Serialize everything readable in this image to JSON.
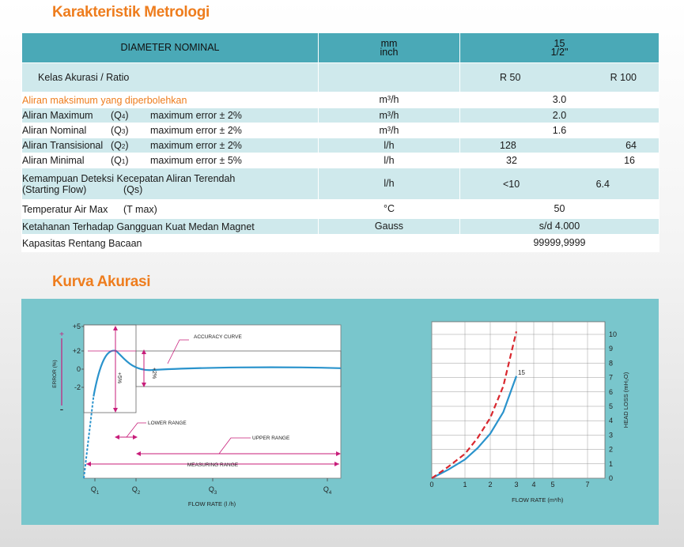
{
  "section1_title": "Karakteristik Metrologi",
  "section2_title": "Kurva Akurasi",
  "table": {
    "header": {
      "label": "DIAMETER NOMINAL",
      "unit_line1": "mm",
      "unit_line2": "inch",
      "value_line1": "15",
      "value_line2": "1/2\""
    },
    "ratio": {
      "label": "Kelas Akurasi / Ratio",
      "r50": "R 50",
      "r100": "R 100"
    },
    "max_flow": {
      "label": "Aliran maksimum yang diperbolehkan",
      "unit": "m³/h",
      "value": "3.0"
    },
    "q4": {
      "label": "Aliran Maximum",
      "symbol": "(Q",
      "sub": "4",
      "close": ")",
      "error": "maximum error ± 2%",
      "unit": "m³/h",
      "value": "2.0"
    },
    "q3": {
      "label": "Aliran Nominal",
      "symbol": "(Q",
      "sub": "3",
      "close": ")",
      "error": "maximum error ± 2%",
      "unit": "m³/h",
      "value": "1.6"
    },
    "q2": {
      "label": "Aliran Transisional",
      "symbol": "(Q",
      "sub": "2",
      "close": ")",
      "error": "maximum error ± 2%",
      "unit": "l/h",
      "v1": "128",
      "v2": "64"
    },
    "q1": {
      "label": "Aliran Minimal",
      "symbol": "(Q",
      "sub": "1",
      "close": ")",
      "error": "maximum error ± 5%",
      "unit": "l/h",
      "v1": "32",
      "v2": "16"
    },
    "qs": {
      "label_line1": "Kemampuan Deteksi Kecepatan Aliran Terendah",
      "label_line2": "(Starting Flow)",
      "symbol": "(Qs)",
      "unit": "l/h",
      "v1": "<10",
      "v2": "6.4"
    },
    "temp": {
      "label": "Temperatur Air Max",
      "symbol": "(T max)",
      "unit": "°C",
      "value": "50"
    },
    "magnet": {
      "label": "Ketahanan Terhadap Gangguan Kuat Medan Magnet",
      "unit": "Gauss",
      "value": "s/d 4.000"
    },
    "range": {
      "label": "Kapasitas Rentang Bacaan",
      "value": "99999,9999"
    }
  },
  "chart_data": [
    {
      "type": "line",
      "title": "",
      "xlabel": "FLOW RATE (l /h)",
      "ylabel": "ERROR (%)",
      "x_ticks": [
        "Q1",
        "Q2",
        "Q3",
        "Q4"
      ],
      "y_ticks": [
        "+5",
        "+2",
        "0",
        "-2"
      ],
      "annotations": [
        "ACCURACY CURVE",
        "LOWER RANGE",
        "UPPER RANGE",
        "MEASURING RANGE",
        "+5%",
        "+2%",
        "+",
        "-"
      ],
      "series": [
        {
          "name": "",
          "x": [
            0,
            0.3,
            0.6,
            1.0,
            1.5,
            2.0,
            3.0,
            4.0
          ],
          "values": [
            -9,
            -3,
            1.5,
            2.0,
            0.4,
            -0.1,
            0.1,
            0.1
          ]
        }
      ]
    },
    {
      "type": "line",
      "title": "",
      "xlabel": "FLOW RATE (m³/h)",
      "ylabel": "HEAD LOSS (mH₂O)",
      "x_ticks": [
        "0",
        "1",
        "2",
        "3",
        "4",
        "5",
        "7"
      ],
      "y_ticks": [
        "0",
        "1",
        "2",
        "3",
        "4",
        "5",
        "6",
        "7",
        "8",
        "9",
        "10"
      ],
      "ylim": [
        0,
        10
      ],
      "annotations": [
        "15"
      ],
      "series": [
        {
          "name": "",
          "x": [
            0,
            0.5,
            1,
            1.5,
            2,
            2.5,
            3
          ],
          "values": [
            0,
            0.6,
            1.3,
            2.1,
            3.1,
            4.6,
            7.1
          ],
          "style": "solid",
          "color": "#2a93cc"
        },
        {
          "name": "",
          "x": [
            0,
            0.5,
            1,
            1.5,
            2,
            2.5,
            3
          ],
          "values": [
            0,
            0.8,
            1.7,
            2.8,
            4.2,
            6.4,
            10.2
          ],
          "style": "dashed",
          "color": "#d9272e"
        }
      ]
    }
  ],
  "colors": {
    "accent": "#ee7d1e",
    "table_header": "#4aa9b7",
    "row_light": "#cfe9ec",
    "chart_bg": "#79c6cc",
    "curve": "#2a93cc",
    "annotation": "#c81d7a"
  }
}
